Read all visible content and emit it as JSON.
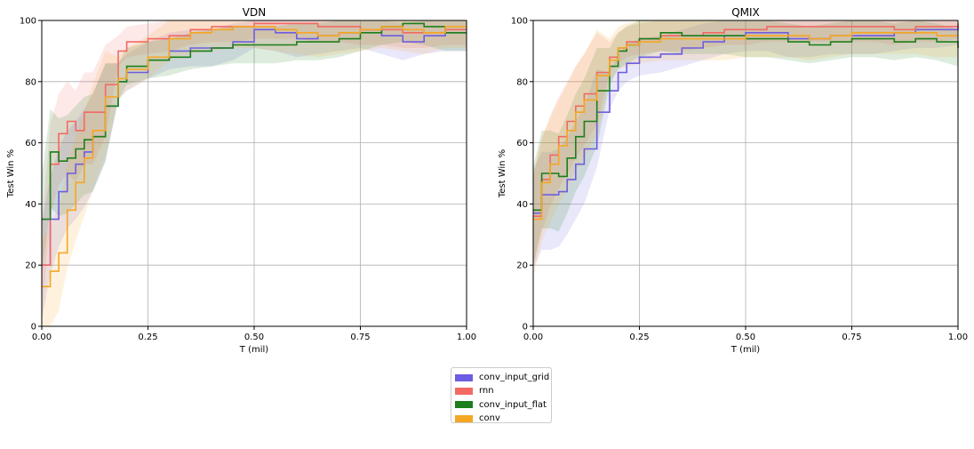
{
  "colors": {
    "conv_input_grid": "#6d5de0",
    "rnn": "#f26a63",
    "conv_input_flat": "#1b7f1b",
    "conv": "#f5a623"
  },
  "legend": {
    "items": [
      {
        "key": "conv_input_grid",
        "label": "conv_input_grid"
      },
      {
        "key": "rnn",
        "label": "rnn"
      },
      {
        "key": "conv_input_flat",
        "label": "conv_input_flat"
      },
      {
        "key": "conv",
        "label": "conv"
      }
    ],
    "placement": "bottom-center"
  },
  "chart_data": [
    {
      "type": "line",
      "title": "VDN",
      "xlabel": "T (mil)",
      "ylabel": "Test Win %",
      "xlim": [
        0,
        1
      ],
      "ylim": [
        0,
        100
      ],
      "xticks": [
        "0.00",
        "0.25",
        "0.50",
        "0.75",
        "1.00"
      ],
      "yticks": [
        "0",
        "20",
        "40",
        "60",
        "80",
        "100"
      ],
      "grid": true,
      "shaded_bands": true,
      "series": [
        {
          "name": "conv_input_grid",
          "x": [
            0,
            0.02,
            0.04,
            0.06,
            0.08,
            0.1,
            0.12,
            0.15,
            0.18,
            0.2,
            0.25,
            0.3,
            0.35,
            0.4,
            0.45,
            0.5,
            0.55,
            0.6,
            0.65,
            0.7,
            0.75,
            0.8,
            0.85,
            0.9,
            0.95,
            1.0
          ],
          "y": [
            20,
            35,
            44,
            50,
            53,
            57,
            62,
            72,
            80,
            83,
            87,
            90,
            91,
            91,
            93,
            97,
            96,
            94,
            95,
            96,
            97,
            95,
            93,
            95,
            96,
            96
          ]
        },
        {
          "name": "rnn",
          "x": [
            0,
            0.02,
            0.04,
            0.06,
            0.08,
            0.1,
            0.12,
            0.15,
            0.18,
            0.2,
            0.25,
            0.3,
            0.35,
            0.4,
            0.45,
            0.5,
            0.55,
            0.6,
            0.65,
            0.7,
            0.75,
            0.8,
            0.85,
            0.9,
            0.95,
            1.0
          ],
          "y": [
            20,
            53,
            63,
            67,
            64,
            70,
            70,
            79,
            90,
            93,
            94,
            95,
            97,
            98,
            98,
            99,
            99,
            99,
            98,
            98,
            97,
            97,
            96,
            96,
            97,
            97
          ]
        },
        {
          "name": "conv_input_flat",
          "x": [
            0,
            0.02,
            0.04,
            0.06,
            0.08,
            0.1,
            0.12,
            0.15,
            0.18,
            0.2,
            0.25,
            0.3,
            0.35,
            0.4,
            0.45,
            0.5,
            0.55,
            0.6,
            0.65,
            0.7,
            0.75,
            0.8,
            0.85,
            0.9,
            0.95,
            1.0
          ],
          "y": [
            35,
            57,
            54,
            55,
            58,
            61,
            62,
            72,
            80,
            85,
            87,
            88,
            90,
            91,
            92,
            92,
            92,
            93,
            93,
            94,
            96,
            98,
            99,
            98,
            96,
            96
          ]
        },
        {
          "name": "conv",
          "x": [
            0,
            0.02,
            0.04,
            0.06,
            0.08,
            0.1,
            0.12,
            0.15,
            0.18,
            0.2,
            0.25,
            0.3,
            0.35,
            0.4,
            0.45,
            0.5,
            0.55,
            0.6,
            0.65,
            0.7,
            0.75,
            0.8,
            0.85,
            0.9,
            0.95,
            1.0
          ],
          "y": [
            13,
            18,
            24,
            38,
            47,
            55,
            64,
            75,
            81,
            84,
            88,
            94,
            96,
            97,
            98,
            98,
            97,
            96,
            95,
            96,
            97,
            98,
            97,
            96,
            98,
            98
          ]
        }
      ]
    },
    {
      "type": "line",
      "title": "QMIX",
      "xlabel": "T (mil)",
      "ylabel": "Test Win %",
      "xlim": [
        0,
        1
      ],
      "ylim": [
        0,
        100
      ],
      "xticks": [
        "0.00",
        "0.25",
        "0.50",
        "0.75",
        "1.00"
      ],
      "yticks": [
        "0",
        "20",
        "40",
        "60",
        "80",
        "100"
      ],
      "grid": true,
      "shaded_bands": true,
      "series": [
        {
          "name": "conv_input_grid",
          "x": [
            0,
            0.02,
            0.04,
            0.06,
            0.08,
            0.1,
            0.12,
            0.15,
            0.18,
            0.2,
            0.22,
            0.25,
            0.3,
            0.35,
            0.4,
            0.45,
            0.5,
            0.55,
            0.6,
            0.65,
            0.7,
            0.75,
            0.8,
            0.85,
            0.9,
            0.95,
            1.0
          ],
          "y": [
            37,
            43,
            43,
            44,
            48,
            53,
            58,
            70,
            77,
            83,
            86,
            88,
            89,
            91,
            93,
            95,
            96,
            96,
            94,
            94,
            95,
            95,
            95,
            96,
            97,
            97,
            98
          ]
        },
        {
          "name": "rnn",
          "x": [
            0,
            0.02,
            0.04,
            0.06,
            0.08,
            0.1,
            0.12,
            0.15,
            0.18,
            0.2,
            0.22,
            0.25,
            0.3,
            0.35,
            0.4,
            0.45,
            0.5,
            0.55,
            0.6,
            0.65,
            0.7,
            0.75,
            0.8,
            0.85,
            0.9,
            0.95,
            1.0
          ],
          "y": [
            36,
            48,
            56,
            62,
            67,
            72,
            76,
            83,
            88,
            91,
            93,
            94,
            95,
            95,
            96,
            97,
            97,
            98,
            98,
            98,
            98,
            98,
            98,
            97,
            98,
            98,
            99
          ]
        },
        {
          "name": "conv_input_flat",
          "x": [
            0,
            0.02,
            0.04,
            0.06,
            0.08,
            0.1,
            0.12,
            0.15,
            0.18,
            0.2,
            0.22,
            0.25,
            0.3,
            0.35,
            0.4,
            0.45,
            0.5,
            0.55,
            0.6,
            0.65,
            0.7,
            0.75,
            0.8,
            0.85,
            0.9,
            0.95,
            1.0
          ],
          "y": [
            38,
            50,
            50,
            49,
            55,
            62,
            67,
            77,
            85,
            90,
            92,
            94,
            96,
            95,
            95,
            95,
            94,
            94,
            93,
            92,
            93,
            94,
            94,
            93,
            94,
            93,
            91
          ]
        },
        {
          "name": "conv",
          "x": [
            0,
            0.02,
            0.04,
            0.06,
            0.08,
            0.1,
            0.12,
            0.15,
            0.18,
            0.2,
            0.22,
            0.25,
            0.3,
            0.35,
            0.4,
            0.45,
            0.5,
            0.55,
            0.6,
            0.65,
            0.7,
            0.75,
            0.8,
            0.85,
            0.9,
            0.95,
            1.0
          ],
          "y": [
            35,
            47,
            53,
            59,
            64,
            70,
            74,
            82,
            87,
            91,
            92,
            93,
            94,
            94,
            94,
            94,
            95,
            95,
            95,
            94,
            95,
            96,
            96,
            96,
            96,
            95,
            95
          ]
        }
      ]
    }
  ]
}
